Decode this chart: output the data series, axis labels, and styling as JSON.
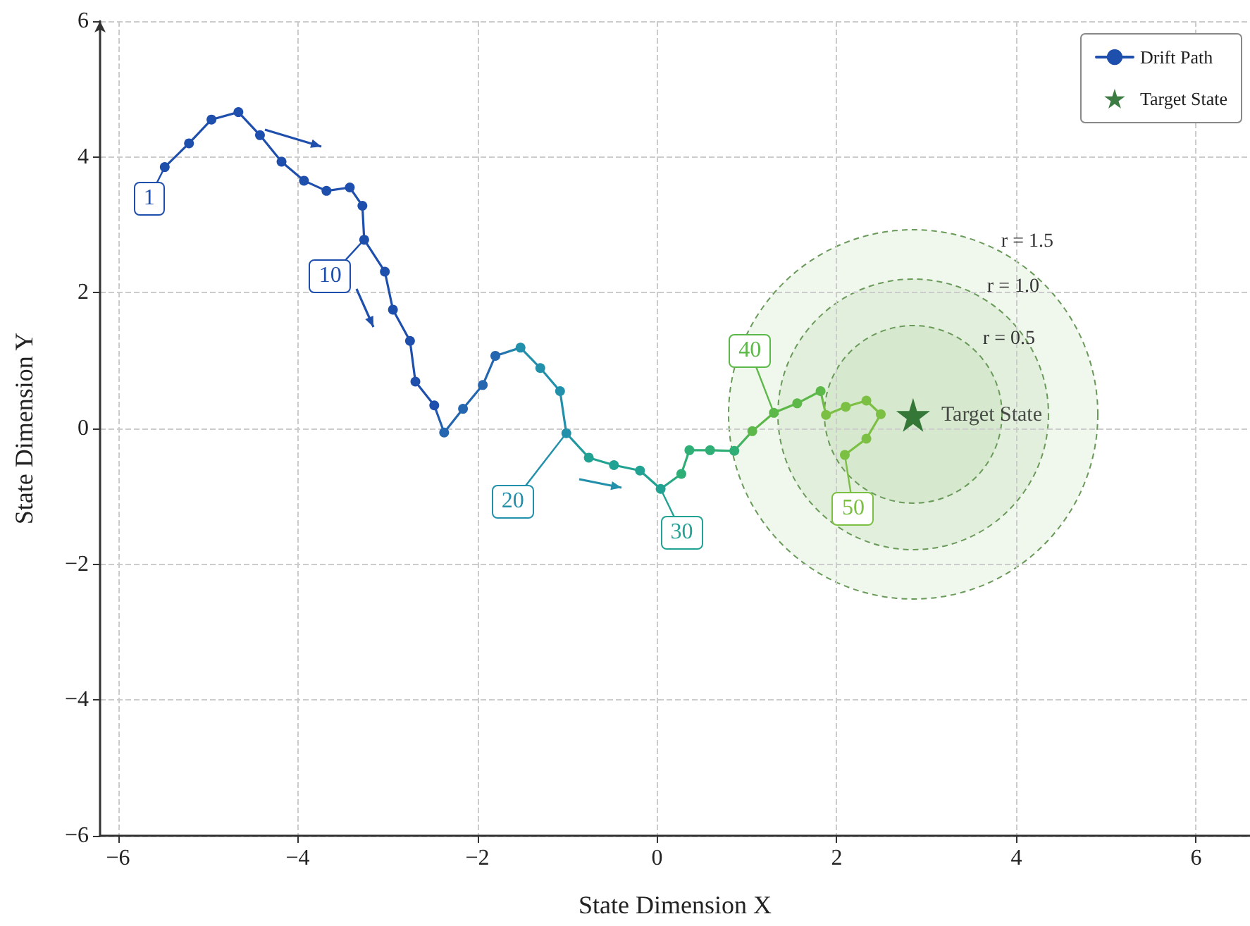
{
  "chart_data": {
    "type": "line",
    "xlabel": "State Dimension X",
    "ylabel": "State Dimension Y",
    "xlim": [
      -6.2,
      6.6
    ],
    "ylim": [
      -6,
      6
    ],
    "xticks": [
      -6,
      -4,
      -2,
      0,
      2,
      4,
      6
    ],
    "yticks": [
      -6,
      -4,
      -2,
      0,
      2,
      4,
      6
    ],
    "grid": true,
    "legend": "top right",
    "line_style": "solid",
    "series": [
      {
        "name": "Drift Path",
        "marker": "circle",
        "color": "#1f4fad",
        "x": [
          -5.48,
          -5.21,
          -4.96,
          -4.66,
          -4.42,
          -4.18,
          -3.93,
          -3.68,
          -3.42,
          -3.28,
          -3.26,
          -3.03,
          -2.94,
          -2.75,
          -2.69,
          -2.48,
          -2.37,
          -2.16,
          -1.94,
          -1.8,
          -1.52,
          -1.3,
          -1.08,
          -1.01,
          -0.76,
          -0.48,
          -0.19,
          0.04,
          0.27,
          0.36,
          0.59,
          0.86,
          1.06,
          1.3,
          1.56,
          1.82,
          1.88,
          2.1,
          2.33,
          2.49,
          2.33,
          2.09
        ],
        "values": [
          3.85,
          4.2,
          4.55,
          4.66,
          4.32,
          3.93,
          3.65,
          3.5,
          3.55,
          3.28,
          2.78,
          2.31,
          1.75,
          1.29,
          0.69,
          0.34,
          -0.06,
          0.29,
          0.64,
          1.07,
          1.19,
          0.89,
          0.55,
          -0.07,
          -0.43,
          -0.54,
          -0.62,
          -0.89,
          -0.67,
          -0.32,
          -0.32,
          -0.33,
          -0.04,
          0.23,
          0.37,
          0.55,
          0.2,
          0.32,
          0.41,
          0.21,
          -0.15,
          -0.39
        ],
        "colors": [
          "#1f4fad",
          "#1f4fad",
          "#1f4fad",
          "#1f4fad",
          "#1f4fad",
          "#1f4fad",
          "#1f4fad",
          "#1f4fad",
          "#1f4fad",
          "#1f4fad",
          "#1f4fad",
          "#1f4fad",
          "#1f4fad",
          "#1f4fad",
          "#1f4fad",
          "#1f4fad",
          "#2466b0",
          "#2466b0",
          "#2466b0",
          "#2466b0",
          "#2290ab",
          "#2290ab",
          "#2290ab",
          "#2290ab",
          "#22a293",
          "#22a293",
          "#22a293",
          "#22a293",
          "#2fae76",
          "#2fae76",
          "#2fae76",
          "#2fae76",
          "#5cb848",
          "#5cb848",
          "#5cb848",
          "#5cb848",
          "#7cc043",
          "#7cc043",
          "#7cc043",
          "#7cc043",
          "#7cc043",
          "#7cc043"
        ]
      },
      {
        "name": "Target State",
        "type": "scatter",
        "marker": "star",
        "color": "#0b5a12",
        "x": [
          2.85
        ],
        "values": [
          0.2
        ]
      }
    ],
    "annotations": [
      {
        "text": "1",
        "x": -5.48,
        "y": 3.85
      },
      {
        "text": "10",
        "x": -3.26,
        "y": 2.78
      },
      {
        "text": "20",
        "x": -1.01,
        "y": -0.07
      },
      {
        "text": "30",
        "x": 0.04,
        "y": -0.89
      },
      {
        "text": "40",
        "x": 1.3,
        "y": 0.23
      },
      {
        "text": "50",
        "x": 2.09,
        "y": -0.39
      },
      "r = 0.5",
      "r = 1.0",
      "r = 1.5"
    ]
  }
}
